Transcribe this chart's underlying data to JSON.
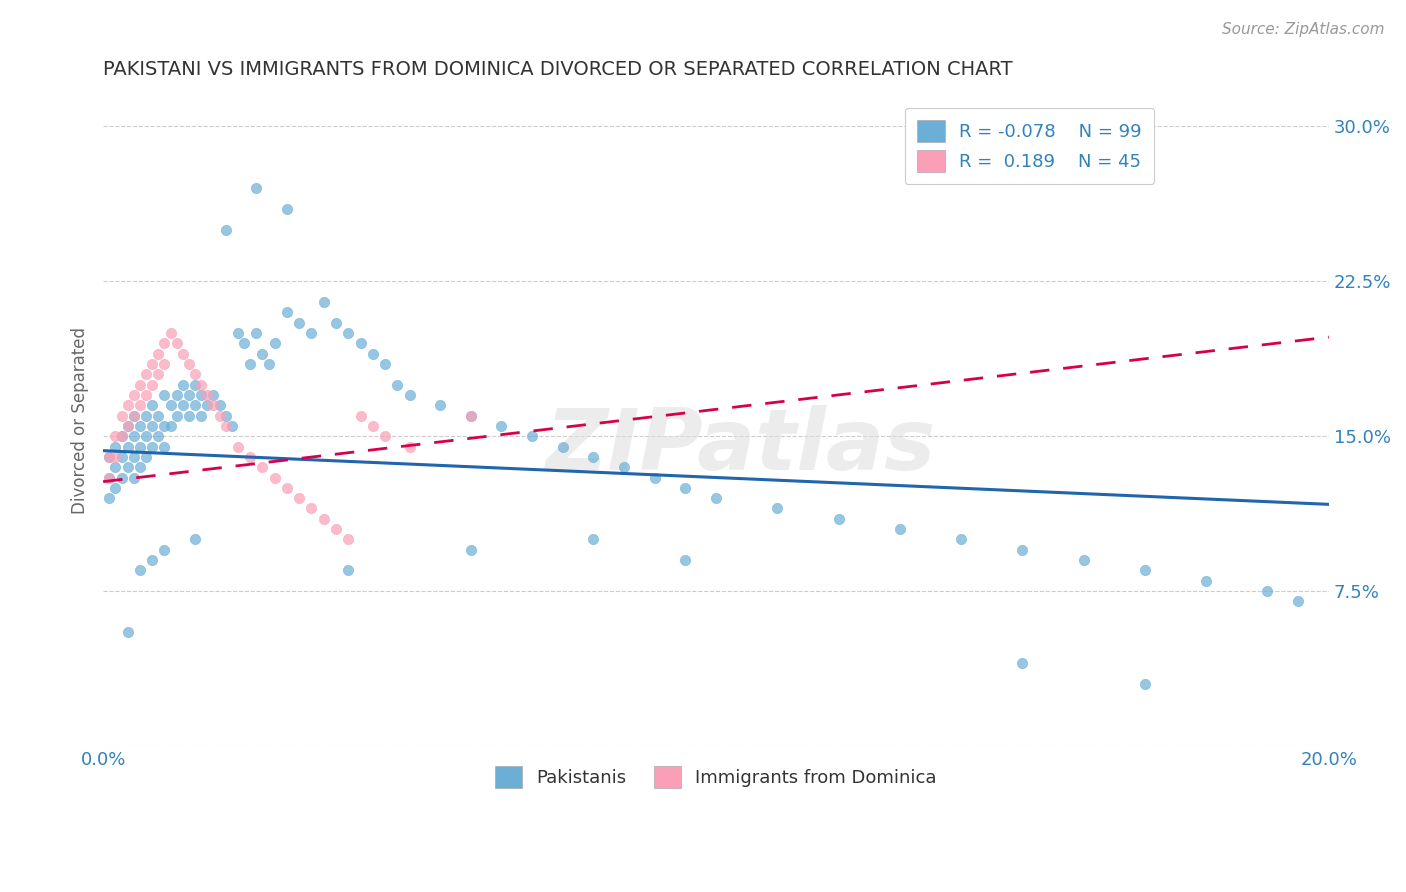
{
  "title": "PAKISTANI VS IMMIGRANTS FROM DOMINICA DIVORCED OR SEPARATED CORRELATION CHART",
  "source_text": "Source: ZipAtlas.com",
  "ylabel": "Divorced or Separated",
  "xlabel": "",
  "xlim": [
    0.0,
    0.2
  ],
  "ylim": [
    0.0,
    0.315
  ],
  "yticks": [
    0.0,
    0.075,
    0.15,
    0.225,
    0.3
  ],
  "ytick_labels": [
    "",
    "7.5%",
    "15.0%",
    "22.5%",
    "30.0%"
  ],
  "xticks": [
    0.0,
    0.05,
    0.1,
    0.15,
    0.2
  ],
  "xtick_labels": [
    "0.0%",
    "",
    "",
    "",
    "20.0%"
  ],
  "legend_r1": "R = -0.078",
  "legend_n1": "N = 99",
  "legend_r2": "R =  0.189",
  "legend_n2": "N = 45",
  "color_blue": "#6baed6",
  "color_pink": "#fa9fb5",
  "color_blue_line": "#2166ac",
  "color_pink_line": "#d6004c",
  "color_label_blue": "#3182bd",
  "watermark": "ZIPatlas",
  "pk_trend_x0": 0.0,
  "pk_trend_y0": 0.143,
  "pk_trend_x1": 0.2,
  "pk_trend_y1": 0.117,
  "dom_trend_x0": 0.0,
  "dom_trend_y0": 0.128,
  "dom_trend_x1": 0.2,
  "dom_trend_y1": 0.198,
  "pakistani_x": [
    0.001,
    0.001,
    0.001,
    0.002,
    0.002,
    0.002,
    0.003,
    0.003,
    0.003,
    0.004,
    0.004,
    0.004,
    0.005,
    0.005,
    0.005,
    0.005,
    0.006,
    0.006,
    0.006,
    0.007,
    0.007,
    0.007,
    0.008,
    0.008,
    0.008,
    0.009,
    0.009,
    0.01,
    0.01,
    0.01,
    0.011,
    0.011,
    0.012,
    0.012,
    0.013,
    0.013,
    0.014,
    0.014,
    0.015,
    0.015,
    0.016,
    0.016,
    0.017,
    0.018,
    0.019,
    0.02,
    0.021,
    0.022,
    0.023,
    0.024,
    0.025,
    0.026,
    0.027,
    0.028,
    0.03,
    0.032,
    0.034,
    0.036,
    0.038,
    0.04,
    0.042,
    0.044,
    0.046,
    0.048,
    0.05,
    0.055,
    0.06,
    0.065,
    0.07,
    0.075,
    0.08,
    0.085,
    0.09,
    0.095,
    0.1,
    0.11,
    0.12,
    0.13,
    0.14,
    0.15,
    0.16,
    0.17,
    0.18,
    0.19,
    0.195,
    0.15,
    0.17,
    0.06,
    0.08,
    0.095,
    0.04,
    0.025,
    0.03,
    0.02,
    0.015,
    0.01,
    0.008,
    0.006,
    0.004
  ],
  "pakistani_y": [
    0.14,
    0.13,
    0.12,
    0.145,
    0.135,
    0.125,
    0.15,
    0.14,
    0.13,
    0.155,
    0.145,
    0.135,
    0.16,
    0.15,
    0.14,
    0.13,
    0.155,
    0.145,
    0.135,
    0.16,
    0.15,
    0.14,
    0.165,
    0.155,
    0.145,
    0.16,
    0.15,
    0.17,
    0.155,
    0.145,
    0.165,
    0.155,
    0.17,
    0.16,
    0.175,
    0.165,
    0.17,
    0.16,
    0.175,
    0.165,
    0.17,
    0.16,
    0.165,
    0.17,
    0.165,
    0.16,
    0.155,
    0.2,
    0.195,
    0.185,
    0.2,
    0.19,
    0.185,
    0.195,
    0.21,
    0.205,
    0.2,
    0.215,
    0.205,
    0.2,
    0.195,
    0.19,
    0.185,
    0.175,
    0.17,
    0.165,
    0.16,
    0.155,
    0.15,
    0.145,
    0.14,
    0.135,
    0.13,
    0.125,
    0.12,
    0.115,
    0.11,
    0.105,
    0.1,
    0.095,
    0.09,
    0.085,
    0.08,
    0.075,
    0.07,
    0.04,
    0.03,
    0.095,
    0.1,
    0.09,
    0.085,
    0.27,
    0.26,
    0.25,
    0.1,
    0.095,
    0.09,
    0.085,
    0.055
  ],
  "dominica_x": [
    0.001,
    0.001,
    0.002,
    0.002,
    0.003,
    0.003,
    0.004,
    0.004,
    0.005,
    0.005,
    0.006,
    0.006,
    0.007,
    0.007,
    0.008,
    0.008,
    0.009,
    0.009,
    0.01,
    0.01,
    0.011,
    0.012,
    0.013,
    0.014,
    0.015,
    0.016,
    0.017,
    0.018,
    0.019,
    0.02,
    0.022,
    0.024,
    0.026,
    0.028,
    0.03,
    0.032,
    0.034,
    0.036,
    0.038,
    0.04,
    0.042,
    0.044,
    0.046,
    0.05,
    0.06
  ],
  "dominica_y": [
    0.14,
    0.13,
    0.15,
    0.14,
    0.16,
    0.15,
    0.165,
    0.155,
    0.17,
    0.16,
    0.175,
    0.165,
    0.18,
    0.17,
    0.185,
    0.175,
    0.19,
    0.18,
    0.195,
    0.185,
    0.2,
    0.195,
    0.19,
    0.185,
    0.18,
    0.175,
    0.17,
    0.165,
    0.16,
    0.155,
    0.145,
    0.14,
    0.135,
    0.13,
    0.125,
    0.12,
    0.115,
    0.11,
    0.105,
    0.1,
    0.16,
    0.155,
    0.15,
    0.145,
    0.16
  ]
}
